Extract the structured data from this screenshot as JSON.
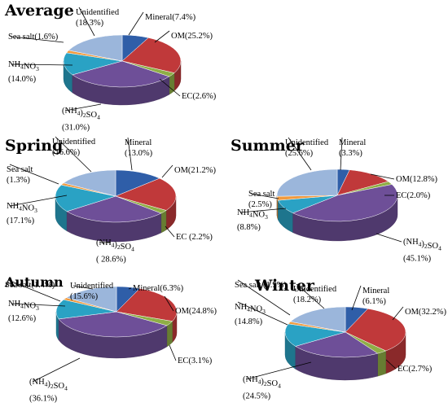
{
  "colors": {
    "Mineral": "#2f5ea8",
    "OM": "#c0393a",
    "EC": "#8fae46",
    "(NH4)2SO4": "#6e4f98",
    "NH4NO3": "#2aa2c4",
    "Sea salt": "#f09a3e",
    "Unidentified": "#9bb6db"
  },
  "chart_data": [
    {
      "type": "pie",
      "title": "Average",
      "categories": [
        "Mineral",
        "OM",
        "EC",
        "(NH4)2SO4",
        "NH4NO3",
        "Sea salt",
        "Unidentified"
      ],
      "values": [
        7.4,
        25.2,
        2.6,
        31.0,
        14.0,
        1.6,
        18.3
      ],
      "labels": [
        "Mineral(7.4%)",
        "OM(25.2%)",
        "EC(2.6%)",
        "(NH4)2SO4|(31.0%)",
        "NH4NO3|(14.0%)",
        "Sea salt(1.6%)",
        "Unidentified|(18.3%)"
      ]
    },
    {
      "type": "pie",
      "title": "Spring",
      "categories": [
        "Mineral",
        "OM",
        "EC",
        "(NH4)2SO4",
        "NH4NO3",
        "Sea salt",
        "Unidentified"
      ],
      "values": [
        13.0,
        21.2,
        2.2,
        28.6,
        17.1,
        1.3,
        16.6
      ],
      "labels": [
        "Mineral|(13.0%)",
        "OM(21.2%)",
        "EC (2.2%)",
        "(NH4)2SO4|( 28.6%)",
        "NH4NO3|(17.1%)",
        "Sea salt|(1.3%)",
        "Unidentified|(16.6%)"
      ]
    },
    {
      "type": "pie",
      "title": "Summer",
      "categories": [
        "Mineral",
        "OM",
        "EC",
        "(NH4)2SO4",
        "NH4NO3",
        "Sea salt",
        "Unidentified"
      ],
      "values": [
        3.3,
        12.8,
        2.0,
        45.1,
        8.8,
        2.5,
        25.6
      ],
      "labels": [
        "Mineral|(3.3%)",
        "OM(12.8%)",
        "EC(2.0%)",
        "(NH4)2SO4|(45.1%)",
        "NH4NO3|(8.8%)",
        "Sea salt|(2.5%)",
        "Unidentified|(25.6%)"
      ]
    },
    {
      "type": "pie",
      "title": "Autumn",
      "categories": [
        "Mineral",
        "OM",
        "EC",
        "(NH4)2SO4",
        "NH4NO3",
        "Sea salt",
        "Unidentified"
      ],
      "values": [
        6.3,
        24.8,
        3.1,
        36.1,
        12.6,
        1.4,
        15.6
      ],
      "labels": [
        "Mineral(6.3%)",
        "OM(24.8%)",
        "EC(3.1%)",
        "(NH4)2SO4|(36.1%)",
        "NH4NO3|(12.6%)",
        "Sea salt(1.4%)",
        "Unidentified|(15.6%)"
      ]
    },
    {
      "type": "pie",
      "title": "Winter",
      "categories": [
        "Mineral",
        "OM",
        "EC",
        "(NH4)2SO4",
        "NH4NO3",
        "Sea salt",
        "Unidentified"
      ],
      "values": [
        6.1,
        32.2,
        2.7,
        24.5,
        14.8,
        1.5,
        18.2
      ],
      "labels": [
        "Mineral|(6.1%)",
        "OM(32.2%)",
        "EC(2.7%)",
        "(NH4)2SO4|(24.5%)",
        "NH4NO3|(14.8%)",
        "Sea salt (1.5%)",
        "Unidentified|(18.2%)"
      ]
    }
  ]
}
